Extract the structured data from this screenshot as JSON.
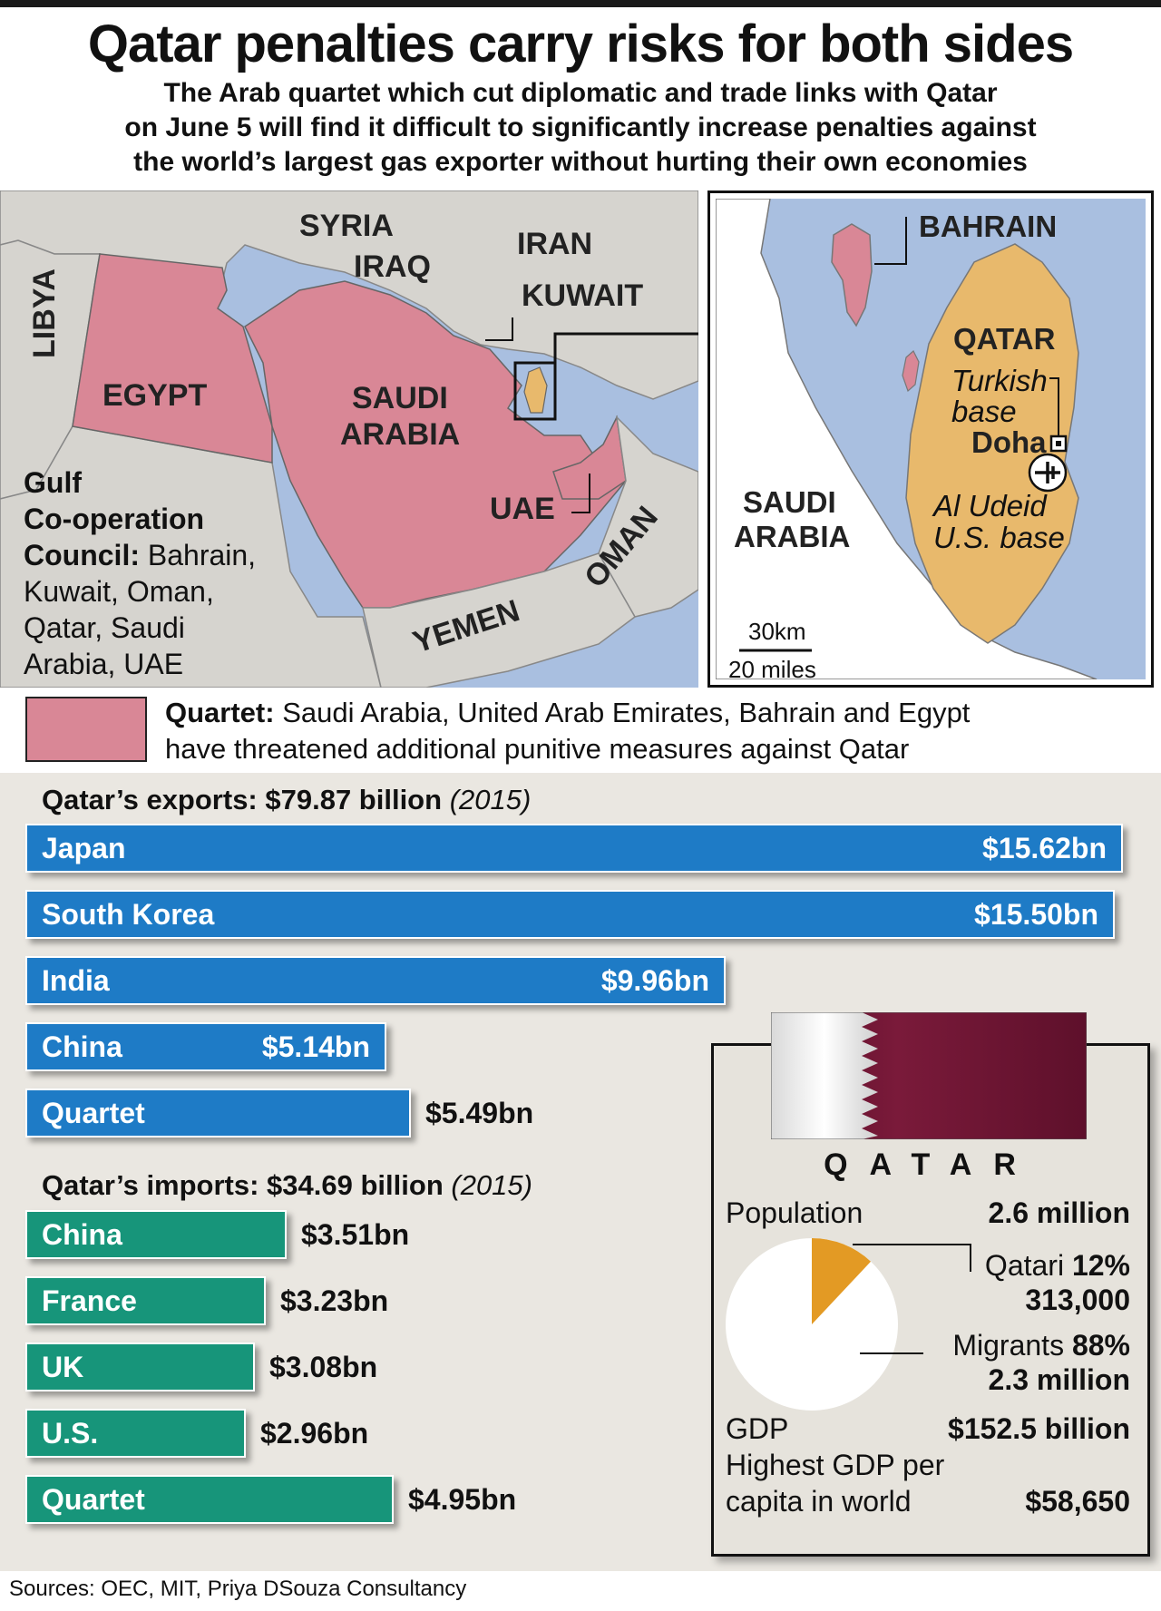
{
  "title": "Qatar penalties carry risks for both sides",
  "subtitle": [
    "The Arab quartet which cut diplomatic and trade links with Qatar",
    "on June 5 will find it difficult to significantly increase penalties against",
    "the world’s largest gas exporter without hurting their own economies"
  ],
  "map": {
    "labels": {
      "syria": "SYRIA",
      "iraq": "IRAQ",
      "iran": "IRAN",
      "kuwait": "KUWAIT",
      "libya": "LIBYA",
      "egypt": "EGYPT",
      "saudi_1": "SAUDI",
      "saudi_2": "ARABIA",
      "uae": "UAE",
      "oman": "OMAN",
      "yemen": "YEMEN"
    },
    "gcc_title_1": "Gulf",
    "gcc_title_2": "Co-operation",
    "gcc_title_3": "Council:",
    "gcc_members_1": " Bahrain,",
    "gcc_members_2": "Kuwait, Oman,",
    "gcc_members_3": "Qatar, Saudi",
    "gcc_members_4": "Arabia, UAE",
    "colors": {
      "quartet": "#d98796",
      "qatar": "#e8b96c",
      "land": "#d6d4cf",
      "sea": "#a9bfe0"
    }
  },
  "inset": {
    "bahrain": "BAHRAIN",
    "qatar": "QATAR",
    "turkish_1": "Turkish",
    "turkish_2": "base",
    "doha": "Doha",
    "udeid_1": "Al Udeid",
    "udeid_2": "U.S. base",
    "saudi_1": "SAUDI",
    "saudi_2": "ARABIA",
    "scale_km": "30km",
    "scale_miles": "20 miles",
    "icons": {
      "base": "airplane-icon",
      "capital": "capital-square-icon"
    }
  },
  "quartet_key": {
    "label": "Quartet:",
    "text_1": " Saudi Arabia, United Arab Emirates, Bahrain and Egypt",
    "text_2": "have threatened additional punitive measures against Qatar"
  },
  "chart_data": [
    {
      "type": "bar",
      "title": "Qatar’s exports: $79.87 billion",
      "title_note": "(2015)",
      "categories": [
        "Japan",
        "South Korea",
        "India",
        "China",
        "Quartet"
      ],
      "values": [
        15.62,
        15.5,
        9.96,
        5.14,
        5.49
      ],
      "value_labels": [
        "$15.62bn",
        "$15.50bn",
        "$9.96bn",
        "$5.14bn",
        "$5.49bn"
      ],
      "color": "#1e7bc6"
    },
    {
      "type": "bar",
      "title": "Qatar’s imports: $34.69 billion",
      "title_note": "(2015)",
      "categories": [
        "China",
        "France",
        "UK",
        "U.S.",
        "Quartet"
      ],
      "values": [
        3.51,
        3.23,
        3.08,
        2.96,
        4.95
      ],
      "value_labels": [
        "$3.51bn",
        "$3.23bn",
        "$3.08bn",
        "$2.96bn",
        "$4.95bn"
      ],
      "color": "#17957a"
    },
    {
      "type": "pie",
      "categories": [
        "Qatari",
        "Migrants"
      ],
      "values": [
        12,
        88
      ],
      "colors": [
        "#e39a24",
        "#ffffff"
      ]
    }
  ],
  "factbox": {
    "country": "QATAR",
    "population_label": "Population",
    "population_value": "2.6 million",
    "qatari_label": "Qatari",
    "qatari_pct": " 12%",
    "qatari_count": "313,000",
    "migrants_label": "Migrants",
    "migrants_pct": " 88%",
    "migrants_count": "2.3 million",
    "gdp_label": "GDP",
    "gdp_value": "$152.5 billion",
    "gdp_pc_label_1": "Highest GDP per",
    "gdp_pc_label_2": "capita in world",
    "gdp_pc_value": "$58,650",
    "flag_colors": {
      "white": "#f2f2f2",
      "maroon": "#6b1230"
    }
  },
  "sources": "Sources: OEC, MIT, Priya DSouza Consultancy"
}
